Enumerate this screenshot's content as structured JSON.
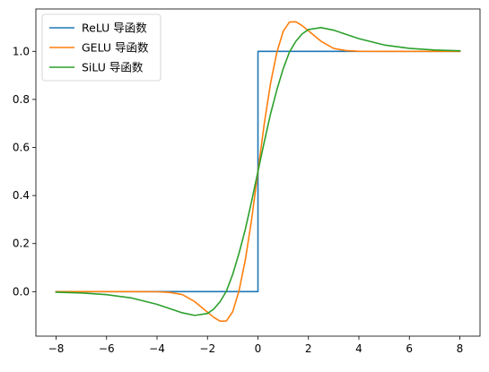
{
  "chart_data": {
    "type": "line",
    "title": "",
    "xlabel": "",
    "ylabel": "",
    "xlim": [
      -8.8,
      8.8
    ],
    "ylim": [
      -0.1852,
      1.1764
    ],
    "grid": false,
    "legend_position": "top-left",
    "x_ticks": [
      -8,
      -6,
      -4,
      -2,
      0,
      2,
      4,
      6,
      8
    ],
    "x_tick_labels": [
      "−8",
      "−6",
      "−4",
      "−2",
      "0",
      "2",
      "4",
      "6",
      "8"
    ],
    "y_ticks": [
      0.0,
      0.2,
      0.4,
      0.6,
      0.8,
      1.0
    ],
    "y_tick_labels": [
      "0.0",
      "0.2",
      "0.4",
      "0.6",
      "0.8",
      "1.0"
    ],
    "x": [
      -8,
      -7,
      -6,
      -5,
      -4,
      -3.5,
      -3,
      -2.5,
      -2,
      -1.75,
      -1.5,
      -1.25,
      -1,
      -0.75,
      -0.5,
      -0.25,
      0,
      0.25,
      0.5,
      0.75,
      1,
      1.25,
      1.5,
      1.75,
      2,
      2.5,
      3,
      3.5,
      4,
      5,
      6,
      7,
      8
    ],
    "series": [
      {
        "name": "ReLU 导函数",
        "color": "#1f77b4",
        "x": [
          -8,
          0,
          0,
          8
        ],
        "values": [
          0,
          0,
          1,
          1
        ]
      },
      {
        "name": "GELU 导函数",
        "color": "#ff7f0e",
        "values": [
          0,
          0,
          0,
          0,
          -0.0005,
          -0.0031,
          -0.0119,
          -0.042,
          -0.0854,
          -0.1071,
          -0.1229,
          -0.1219,
          -0.0833,
          0.0036,
          0.1325,
          0.3009,
          0.5,
          0.6991,
          0.8675,
          0.9964,
          1.0833,
          1.1219,
          1.1229,
          1.1071,
          1.0854,
          1.042,
          1.0119,
          1.0031,
          1.0005,
          1.0,
          1.0,
          1.0,
          1.0
        ]
      },
      {
        "name": "SiLU 导函数",
        "color": "#2ca02c",
        "values": [
          -0.0023,
          -0.0055,
          -0.0124,
          -0.0266,
          -0.0528,
          -0.0705,
          -0.0881,
          -0.0989,
          -0.0908,
          -0.0724,
          -0.0416,
          0.0023,
          0.0723,
          0.1599,
          0.26,
          0.3769,
          0.5,
          0.6231,
          0.74,
          0.8401,
          0.9277,
          0.9977,
          1.0416,
          1.0724,
          1.0908,
          1.0989,
          1.0881,
          1.0705,
          1.0528,
          1.0266,
          1.0124,
          1.0055,
          1.0023
        ]
      }
    ]
  }
}
